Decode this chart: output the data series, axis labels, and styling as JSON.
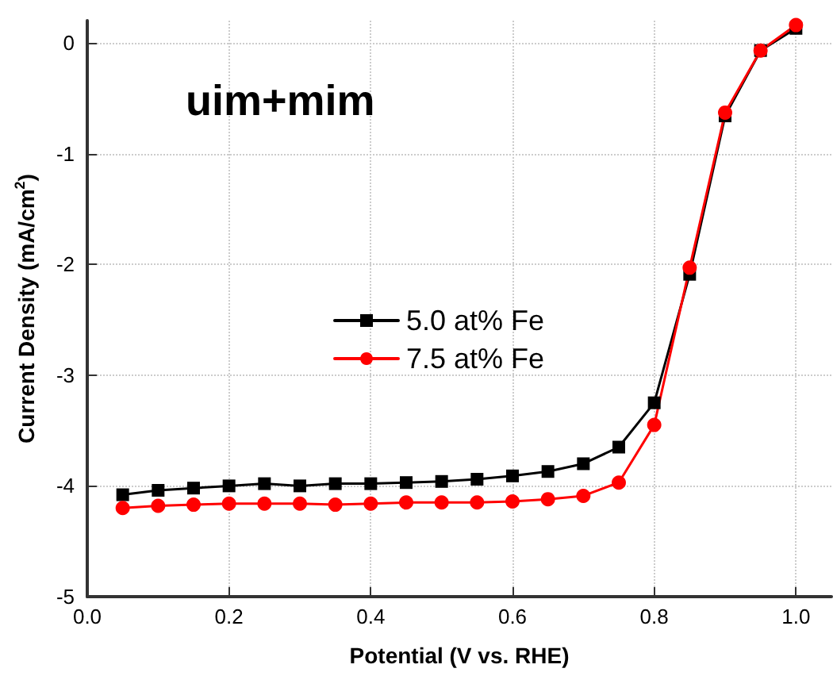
{
  "chart_data": {
    "type": "line",
    "title": "uim+mim",
    "xlabel": "Potential (V vs. RHE)",
    "ylabel": "Current Density (mA/cm$^{2}$)",
    "x": [
      0.05,
      0.1,
      0.15,
      0.2,
      0.25,
      0.3,
      0.35,
      0.4,
      0.45,
      0.5,
      0.55,
      0.6,
      0.65,
      0.7,
      0.75,
      0.8,
      0.85,
      0.9,
      0.95,
      1.0
    ],
    "series": [
      {
        "name": "5.0 at% Fe",
        "color": "#000000",
        "marker": "square",
        "values": [
          -4.08,
          -4.04,
          -4.02,
          -4.0,
          -3.98,
          -4.0,
          -3.98,
          -3.98,
          -3.97,
          -3.96,
          -3.94,
          -3.91,
          -3.87,
          -3.8,
          -3.65,
          -3.25,
          -2.09,
          -0.66,
          -0.07,
          0.13
        ]
      },
      {
        "name": "7.5 at% Fe",
        "color": "#ff0000",
        "marker": "circle",
        "values": [
          -4.2,
          -4.18,
          -4.17,
          -4.16,
          -4.16,
          -4.16,
          -4.17,
          -4.16,
          -4.15,
          -4.15,
          -4.15,
          -4.14,
          -4.12,
          -4.09,
          -3.97,
          -3.45,
          -2.03,
          -0.63,
          -0.07,
          0.16
        ]
      }
    ],
    "xlim": [
      0,
      1.05
    ],
    "xticks": [
      {
        "value": 0,
        "label": "0.0"
      },
      0.2,
      0.4,
      0.6,
      0.8,
      {
        "value": 1,
        "label": "1.0"
      }
    ],
    "ylim": [
      -5,
      0.2
    ],
    "yticks": [
      -5,
      -4,
      -3,
      -2,
      -1,
      0
    ],
    "grid": true,
    "legend": "center",
    "line_style": "solid"
  }
}
